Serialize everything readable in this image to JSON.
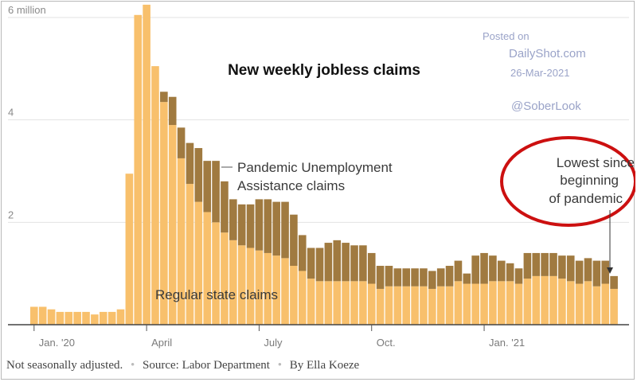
{
  "chart_data": {
    "type": "bar",
    "title": "New weekly jobless claims",
    "y_axis": {
      "min": 0,
      "max": 6,
      "unit": "million",
      "ticks": [
        0,
        2,
        4,
        6
      ],
      "tick_labels": [
        "",
        "2",
        "4",
        "6 million"
      ]
    },
    "x_tick_labels": [
      "Jan. '20",
      "April",
      "July",
      "Oct.",
      "Jan. '21"
    ],
    "x_tick_weeks": [
      0,
      13,
      26,
      39,
      52
    ],
    "series": [
      {
        "name": "Regular state claims",
        "values": [
          0.35,
          0.35,
          0.3,
          0.25,
          0.25,
          0.25,
          0.25,
          0.2,
          0.25,
          0.25,
          0.3,
          2.95,
          6.05,
          6.25,
          5.05,
          4.35,
          3.9,
          3.25,
          2.75,
          2.4,
          2.2,
          2.0,
          1.8,
          1.65,
          1.55,
          1.5,
          1.45,
          1.4,
          1.35,
          1.3,
          1.15,
          1.05,
          0.9,
          0.85,
          0.85,
          0.85,
          0.85,
          0.85,
          0.85,
          0.8,
          0.7,
          0.75,
          0.75,
          0.75,
          0.75,
          0.75,
          0.7,
          0.75,
          0.75,
          0.85,
          0.8,
          0.8,
          0.8,
          0.85,
          0.85,
          0.85,
          0.8,
          0.9,
          0.95,
          0.95,
          0.95,
          0.9,
          0.85,
          0.8,
          0.85,
          0.75,
          0.8,
          0.7
        ],
        "color": "#f8c06c"
      },
      {
        "name": "Pandemic Unemployment Assistance claims",
        "values": [
          0,
          0,
          0,
          0,
          0,
          0,
          0,
          0,
          0,
          0,
          0,
          0,
          0,
          0,
          0,
          0.2,
          0.55,
          0.6,
          0.8,
          1.05,
          1.0,
          1.2,
          1.0,
          0.8,
          0.8,
          0.85,
          1.0,
          1.05,
          1.05,
          1.1,
          1.0,
          0.7,
          0.6,
          0.65,
          0.75,
          0.8,
          0.75,
          0.7,
          0.7,
          0.6,
          0.45,
          0.4,
          0.35,
          0.35,
          0.35,
          0.35,
          0.35,
          0.35,
          0.4,
          0.4,
          0.2,
          0.55,
          0.6,
          0.5,
          0.4,
          0.35,
          0.3,
          0.5,
          0.45,
          0.45,
          0.45,
          0.45,
          0.5,
          0.45,
          0.45,
          0.5,
          0.45,
          0.25
        ],
        "color": "#a07a40"
      }
    ],
    "annotations": {
      "pua_label_line1": "Pandemic Unemployment",
      "pua_label_line2": "Assistance claims",
      "regular_label": "Regular state claims",
      "callout_line1": "Lowest since",
      "callout_line2": "beginning",
      "callout_line3": "of pandemic"
    },
    "watermark": {
      "line1": "Posted on",
      "line2": "DailyShot.com",
      "line3": "26-Mar-2021",
      "line4": "@SoberLook"
    },
    "footer": {
      "note": "Not seasonally adjusted.",
      "source": "Source: Labor Department",
      "byline": "By Ella Koeze",
      "separator": "•"
    },
    "callout_circle_color": "#cc1010",
    "grid": true,
    "legend": "none"
  }
}
